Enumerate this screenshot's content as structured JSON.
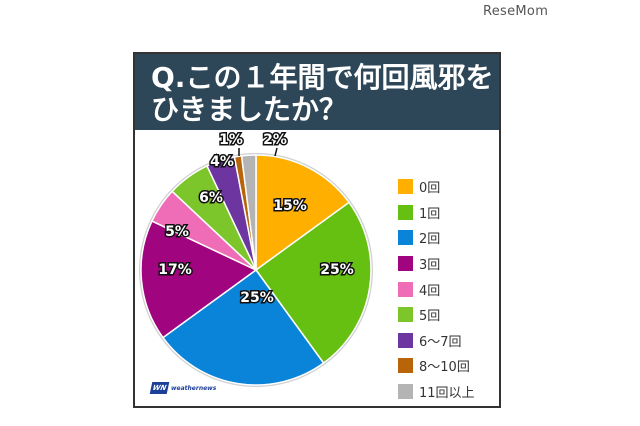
{
  "site": {
    "brand": "ReseMom"
  },
  "header": {
    "title_line1": "Q.この１年間で何回風邪を",
    "title_line2": "ひきましたか？"
  },
  "source": {
    "logo_mark": "WN",
    "logo_text": "weathernews"
  },
  "chart_data": {
    "type": "pie",
    "title": "Q.この１年間で何回風邪をひきましたか？",
    "categories": [
      "0回",
      "1回",
      "2回",
      "3回",
      "4回",
      "5回",
      "6〜7回",
      "8〜10回",
      "11回以上"
    ],
    "values": [
      15,
      25,
      25,
      17,
      5,
      6,
      4,
      1,
      2
    ],
    "labels": [
      "15%",
      "25%",
      "25%",
      "17%",
      "5%",
      "6%",
      "4%",
      "1%",
      "2%"
    ],
    "colors": [
      "#ffaf00",
      "#66c012",
      "#0a84d8",
      "#a0047f",
      "#ee6db6",
      "#7cc52a",
      "#6c35a0",
      "#b8650a",
      "#b4b4b4"
    ],
    "start_angle_deg": 0,
    "direction": "clockwise",
    "legend_position": "right",
    "unit": "%"
  },
  "legend": {
    "items": [
      {
        "label": "0回",
        "color": "#ffaf00"
      },
      {
        "label": "1回",
        "color": "#66c012"
      },
      {
        "label": "2回",
        "color": "#0a84d8"
      },
      {
        "label": "3回",
        "color": "#a0047f"
      },
      {
        "label": "4回",
        "color": "#ee6db6"
      },
      {
        "label": "5回",
        "color": "#7cc52a"
      },
      {
        "label": "6〜7回",
        "color": "#6c35a0"
      },
      {
        "label": "8〜10回",
        "color": "#b8650a"
      },
      {
        "label": "11回以上",
        "color": "#b4b4b4"
      }
    ]
  }
}
